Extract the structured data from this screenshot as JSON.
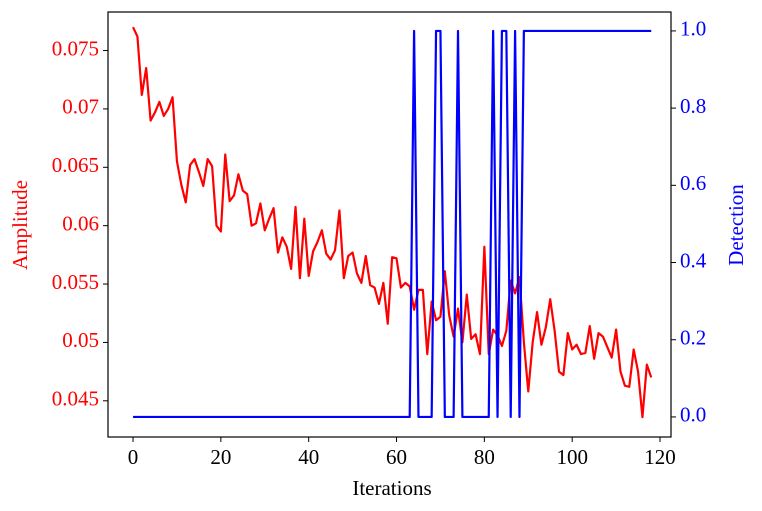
{
  "chart_data": {
    "type": "line",
    "xlabel": "Iterations",
    "ylabel": "Amplitude",
    "y2label": "Detection",
    "x": [
      0,
      1,
      2,
      3,
      4,
      5,
      6,
      7,
      8,
      9,
      10,
      11,
      12,
      13,
      14,
      15,
      16,
      17,
      18,
      19,
      20,
      21,
      22,
      23,
      24,
      25,
      26,
      27,
      28,
      29,
      30,
      31,
      32,
      33,
      34,
      35,
      36,
      37,
      38,
      39,
      40,
      41,
      42,
      43,
      44,
      45,
      46,
      47,
      48,
      49,
      50,
      51,
      52,
      53,
      54,
      55,
      56,
      57,
      58,
      59,
      60,
      61,
      62,
      63,
      64,
      65,
      66,
      67,
      68,
      69,
      70,
      71,
      72,
      73,
      74,
      75,
      76,
      77,
      78,
      79,
      80,
      81,
      82,
      83,
      84,
      85,
      86,
      87,
      88,
      89,
      90,
      91,
      92,
      93,
      94,
      95,
      96,
      97,
      98,
      99,
      100,
      101,
      102,
      103,
      104,
      105,
      106,
      107,
      108,
      109,
      110,
      111,
      112,
      113,
      114,
      115,
      116,
      117,
      118
    ],
    "series": [
      {
        "name": "Amplitude",
        "color": "#ff0000",
        "axis": "y",
        "values": [
          0.077,
          0.0762,
          0.0712,
          0.0735,
          0.069,
          0.0697,
          0.0706,
          0.0694,
          0.07,
          0.071,
          0.0655,
          0.0635,
          0.062,
          0.0652,
          0.0657,
          0.0646,
          0.0634,
          0.0657,
          0.0651,
          0.06,
          0.0595,
          0.0661,
          0.0621,
          0.0626,
          0.0644,
          0.063,
          0.0627,
          0.06,
          0.0602,
          0.0619,
          0.0596,
          0.0606,
          0.0615,
          0.0577,
          0.059,
          0.0582,
          0.0563,
          0.0616,
          0.0555,
          0.0606,
          0.0557,
          0.0578,
          0.0586,
          0.0596,
          0.0576,
          0.0571,
          0.0579,
          0.0613,
          0.0555,
          0.0574,
          0.0577,
          0.0559,
          0.0551,
          0.0574,
          0.0549,
          0.0547,
          0.0533,
          0.0551,
          0.0516,
          0.0573,
          0.0572,
          0.0547,
          0.0551,
          0.0548,
          0.0528,
          0.0545,
          0.0545,
          0.049,
          0.0535,
          0.0519,
          0.0522,
          0.0561,
          0.0523,
          0.0505,
          0.0529,
          0.05,
          0.0541,
          0.0503,
          0.0507,
          0.049,
          0.0582,
          0.049,
          0.0511,
          0.0506,
          0.0497,
          0.051,
          0.0553,
          0.0542,
          0.0556,
          0.05,
          0.0458,
          0.05,
          0.0526,
          0.0498,
          0.0513,
          0.0537,
          0.051,
          0.0475,
          0.0472,
          0.0508,
          0.0494,
          0.0498,
          0.049,
          0.0491,
          0.0514,
          0.0486,
          0.0508,
          0.0505,
          0.0496,
          0.0487,
          0.0511,
          0.0475,
          0.0463,
          0.0462,
          0.0494,
          0.0475,
          0.0436,
          0.0481,
          0.047
        ]
      },
      {
        "name": "Detection",
        "color": "#0000ff",
        "axis": "y2",
        "values": [
          0,
          0,
          0,
          0,
          0,
          0,
          0,
          0,
          0,
          0,
          0,
          0,
          0,
          0,
          0,
          0,
          0,
          0,
          0,
          0,
          0,
          0,
          0,
          0,
          0,
          0,
          0,
          0,
          0,
          0,
          0,
          0,
          0,
          0,
          0,
          0,
          0,
          0,
          0,
          0,
          0,
          0,
          0,
          0,
          0,
          0,
          0,
          0,
          0,
          0,
          0,
          0,
          0,
          0,
          0,
          0,
          0,
          0,
          0,
          0,
          0,
          0,
          0,
          0,
          1,
          0,
          0,
          0,
          0,
          1,
          1,
          0,
          0,
          0,
          1,
          0,
          0,
          0,
          0,
          0,
          0,
          0,
          1,
          0,
          1,
          1,
          0,
          1,
          0,
          1,
          1,
          1,
          1,
          1,
          1,
          1,
          1,
          1,
          1,
          1,
          1,
          1,
          1,
          1,
          1,
          1,
          1,
          1,
          1,
          1,
          1,
          1,
          1,
          1,
          1,
          1,
          1,
          1,
          1
        ]
      }
    ],
    "xlim": [
      -5.7,
      122.5
    ],
    "xticks": [
      0,
      20,
      40,
      60,
      80,
      100,
      120
    ],
    "ylim": [
      0.0419,
      0.0783
    ],
    "yticks": [
      0.045,
      0.05,
      0.055,
      0.06,
      0.065,
      0.07,
      0.075
    ],
    "y2lim": [
      -0.052,
      1.049
    ],
    "y2ticks": [
      {
        "value": 0,
        "label": "0.0"
      },
      0.2,
      0.4,
      0.6,
      0.8,
      {
        "value": 1,
        "label": "1.0"
      }
    ]
  }
}
